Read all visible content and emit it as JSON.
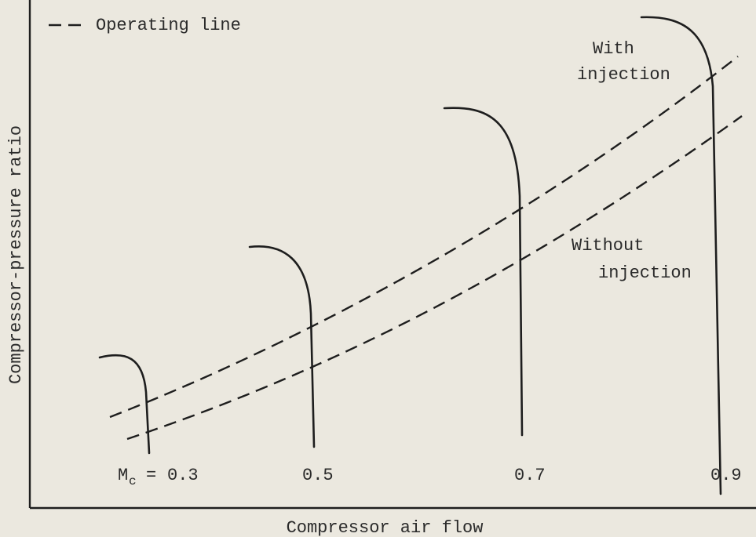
{
  "legend": {
    "label": "Operating line"
  },
  "y_axis": {
    "label": "Compressor-pressure ratio"
  },
  "x_axis": {
    "label": "Compressor air flow"
  },
  "curve_labels": [
    {
      "lines": [
        "With",
        "injection"
      ]
    },
    {
      "lines": [
        "Without",
        "injection"
      ]
    }
  ],
  "speed_lines": {
    "symbol": "M",
    "subscript": "c",
    "equals": "=",
    "labels": [
      "0.3",
      "0.5",
      "0.7",
      "0.9"
    ]
  }
}
